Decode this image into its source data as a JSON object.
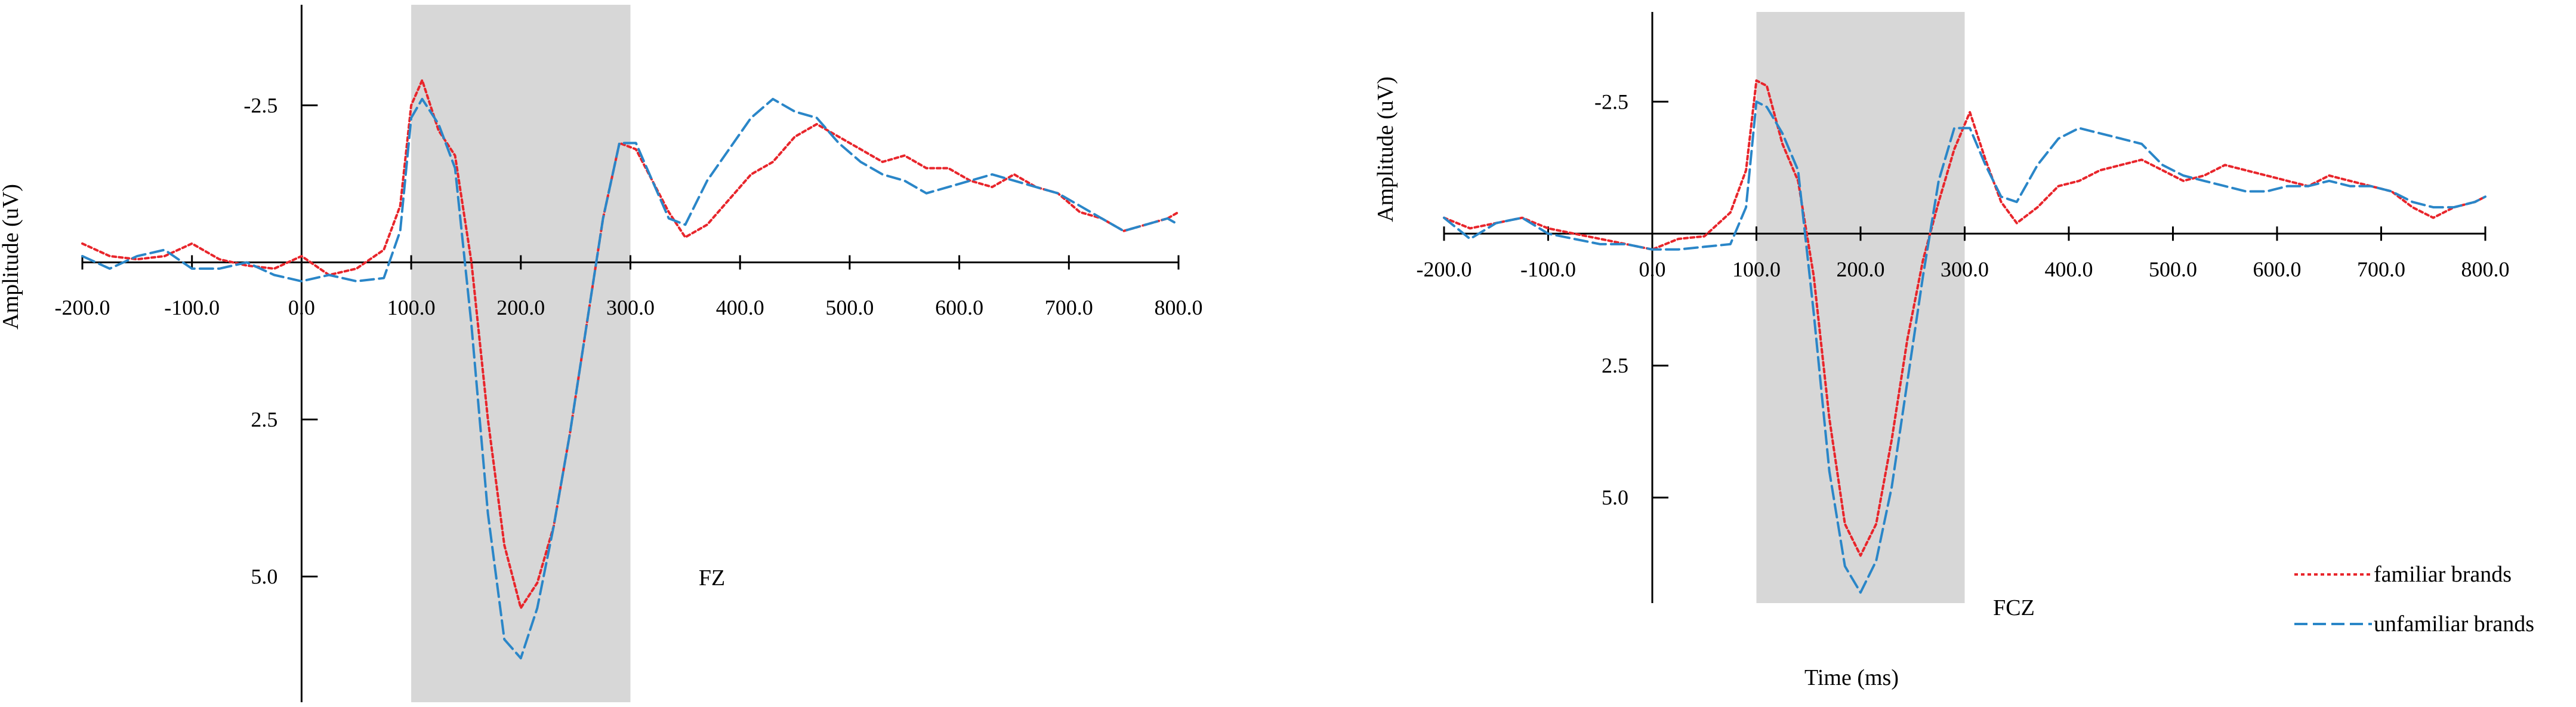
{
  "chart_data": [
    {
      "type": "line",
      "panel_label": "FZ",
      "xlabel": "",
      "ylabel": "Amplitude (uV)",
      "xlim": [
        -200,
        800
      ],
      "ylim": [
        -4.1,
        7.0
      ],
      "y_inverted": true,
      "x_ticks": [
        -200,
        -100,
        0,
        100,
        200,
        300,
        400,
        500,
        600,
        700,
        800
      ],
      "x_tick_labels": [
        "-200.0",
        "-100.0",
        "0.0",
        "100.0",
        "200.0",
        "300.0",
        "400.0",
        "500.0",
        "600.0",
        "700.0",
        "800.0"
      ],
      "y_ticks": [
        -2.5,
        2.5,
        5.0
      ],
      "y_tick_labels": [
        "-2.5",
        "2.5",
        "5.0"
      ],
      "shaded_window": [
        100,
        300
      ],
      "series": [
        {
          "name": "familiar brands",
          "color": "#e8252b",
          "dash": "dotted",
          "x": [
            -200,
            -175,
            -150,
            -125,
            -100,
            -75,
            -50,
            -25,
            0,
            25,
            50,
            75,
            90,
            100,
            110,
            125,
            140,
            155,
            170,
            185,
            200,
            215,
            230,
            245,
            260,
            275,
            290,
            305,
            320,
            335,
            350,
            370,
            390,
            410,
            430,
            450,
            470,
            490,
            510,
            530,
            550,
            570,
            590,
            610,
            630,
            650,
            670,
            690,
            710,
            730,
            750,
            770,
            790,
            800
          ],
          "values": [
            -0.3,
            -0.1,
            -0.05,
            -0.1,
            -0.3,
            -0.05,
            0.05,
            0.1,
            -0.1,
            0.2,
            0.1,
            -0.2,
            -0.9,
            -2.5,
            -2.9,
            -2.1,
            -1.7,
            0.0,
            2.5,
            4.5,
            5.5,
            5.1,
            4.2,
            2.7,
            1.0,
            -0.7,
            -1.9,
            -1.8,
            -1.3,
            -0.8,
            -0.4,
            -0.6,
            -1.0,
            -1.4,
            -1.6,
            -2.0,
            -2.2,
            -2.0,
            -1.8,
            -1.6,
            -1.7,
            -1.5,
            -1.5,
            -1.3,
            -1.2,
            -1.4,
            -1.2,
            -1.1,
            -0.8,
            -0.7,
            -0.5,
            -0.6,
            -0.7,
            -0.8
          ]
        },
        {
          "name": "unfamiliar brands",
          "color": "#2a86c8",
          "dash": "dashed",
          "x": [
            -200,
            -175,
            -150,
            -125,
            -100,
            -75,
            -50,
            -25,
            0,
            25,
            50,
            75,
            90,
            100,
            110,
            125,
            140,
            155,
            170,
            185,
            200,
            215,
            230,
            245,
            260,
            275,
            290,
            305,
            320,
            335,
            350,
            370,
            390,
            410,
            430,
            450,
            470,
            490,
            510,
            530,
            550,
            570,
            590,
            610,
            630,
            650,
            670,
            690,
            710,
            730,
            750,
            770,
            790,
            800
          ],
          "values": [
            -0.1,
            0.1,
            -0.1,
            -0.2,
            0.1,
            0.1,
            0.0,
            0.2,
            0.3,
            0.2,
            0.3,
            0.25,
            -0.5,
            -2.3,
            -2.6,
            -2.2,
            -1.5,
            1.0,
            4.0,
            6.0,
            6.3,
            5.5,
            4.2,
            2.7,
            1.0,
            -0.7,
            -1.9,
            -1.9,
            -1.3,
            -0.7,
            -0.6,
            -1.3,
            -1.8,
            -2.3,
            -2.6,
            -2.4,
            -2.3,
            -1.9,
            -1.6,
            -1.4,
            -1.3,
            -1.1,
            -1.2,
            -1.3,
            -1.4,
            -1.3,
            -1.2,
            -1.1,
            -0.9,
            -0.7,
            -0.5,
            -0.6,
            -0.7,
            -0.6
          ]
        }
      ]
    },
    {
      "type": "line",
      "panel_label": "FCZ",
      "xlabel": "Time (ms)",
      "ylabel": "Amplitude (uV)",
      "xlim": [
        -200,
        800
      ],
      "ylim": [
        -4.2,
        7.0
      ],
      "y_inverted": true,
      "x_ticks": [
        -200,
        -100,
        0,
        100,
        200,
        300,
        400,
        500,
        600,
        700,
        800
      ],
      "x_tick_labels": [
        "-200.0",
        "-100.0",
        "0.0",
        "100.0",
        "200.0",
        "300.0",
        "400.0",
        "500.0",
        "600.0",
        "700.0",
        "800.0"
      ],
      "y_ticks": [
        -2.5,
        2.5,
        5.0
      ],
      "y_tick_labels": [
        "-2.5",
        "2.5",
        "5.0"
      ],
      "shaded_window": [
        100,
        300
      ],
      "series": [
        {
          "name": "familiar brands",
          "color": "#e8252b",
          "dash": "dotted",
          "x": [
            -200,
            -175,
            -150,
            -125,
            -100,
            -75,
            -50,
            -25,
            0,
            25,
            50,
            75,
            90,
            100,
            110,
            125,
            140,
            155,
            170,
            185,
            200,
            215,
            230,
            245,
            260,
            275,
            290,
            305,
            320,
            335,
            350,
            370,
            390,
            410,
            430,
            450,
            470,
            490,
            510,
            530,
            550,
            570,
            590,
            610,
            630,
            650,
            670,
            690,
            710,
            730,
            750,
            770,
            790,
            800
          ],
          "values": [
            -0.3,
            -0.1,
            -0.2,
            -0.3,
            -0.1,
            0.0,
            0.1,
            0.2,
            0.3,
            0.1,
            0.05,
            -0.4,
            -1.2,
            -2.9,
            -2.8,
            -1.7,
            -1.0,
            0.8,
            3.5,
            5.5,
            6.1,
            5.5,
            3.9,
            2.0,
            0.5,
            -0.6,
            -1.6,
            -2.3,
            -1.4,
            -0.6,
            -0.2,
            -0.5,
            -0.9,
            -1.0,
            -1.2,
            -1.3,
            -1.4,
            -1.2,
            -1.0,
            -1.1,
            -1.3,
            -1.2,
            -1.1,
            -1.0,
            -0.9,
            -1.1,
            -1.0,
            -0.9,
            -0.8,
            -0.5,
            -0.3,
            -0.5,
            -0.6,
            -0.7
          ]
        },
        {
          "name": "unfamiliar brands",
          "color": "#2a86c8",
          "dash": "dashed",
          "x": [
            -200,
            -175,
            -150,
            -125,
            -100,
            -75,
            -50,
            -25,
            0,
            25,
            50,
            75,
            90,
            100,
            110,
            125,
            140,
            155,
            170,
            185,
            200,
            215,
            230,
            245,
            260,
            275,
            290,
            305,
            320,
            335,
            350,
            370,
            390,
            410,
            430,
            450,
            470,
            490,
            510,
            530,
            550,
            570,
            590,
            610,
            630,
            650,
            670,
            690,
            710,
            730,
            750,
            770,
            790,
            800
          ],
          "values": [
            -0.3,
            0.1,
            -0.2,
            -0.3,
            0.0,
            0.1,
            0.2,
            0.2,
            0.3,
            0.3,
            0.25,
            0.2,
            -0.5,
            -2.5,
            -2.4,
            -1.9,
            -1.2,
            1.5,
            4.5,
            6.3,
            6.8,
            6.2,
            4.8,
            2.8,
            0.8,
            -1.0,
            -2.0,
            -2.0,
            -1.3,
            -0.7,
            -0.6,
            -1.3,
            -1.8,
            -2.0,
            -1.9,
            -1.8,
            -1.7,
            -1.3,
            -1.1,
            -1.0,
            -0.9,
            -0.8,
            -0.8,
            -0.9,
            -0.9,
            -1.0,
            -0.9,
            -0.9,
            -0.8,
            -0.6,
            -0.5,
            -0.5,
            -0.6,
            -0.7
          ]
        }
      ]
    }
  ],
  "legend": {
    "items": [
      {
        "label": "familiar brands",
        "color": "#e8252b",
        "dash": "dotted"
      },
      {
        "label": "unfamiliar brands",
        "color": "#2a86c8",
        "dash": "dashed"
      }
    ]
  },
  "colors": {
    "shade": "#d7d7d7",
    "axis": "#000000"
  }
}
